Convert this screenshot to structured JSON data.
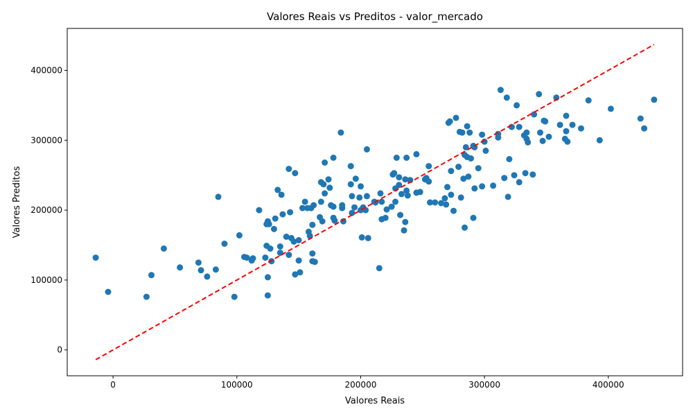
{
  "chart_data": {
    "type": "scatter",
    "title": "Valores Reais vs Preditos - valor_mercado",
    "xlabel": "Valores Reais",
    "ylabel": "Valores Preditos",
    "xlim": [
      -37000,
      460000
    ],
    "ylim": [
      -37000,
      460000
    ],
    "xticks": [
      0,
      100000,
      200000,
      300000,
      400000
    ],
    "yticks": [
      0,
      100000,
      200000,
      300000,
      400000
    ],
    "xtick_labels": [
      "0",
      "100000",
      "200000",
      "300000",
      "400000"
    ],
    "ytick_labels": [
      "0",
      "100000",
      "200000",
      "300000",
      "400000"
    ],
    "grid": false,
    "series": [
      {
        "type": "scatter",
        "color": "#1f77b4",
        "points": [
          [
            -14000,
            132000
          ],
          [
            -4000,
            83000
          ],
          [
            27000,
            76000
          ],
          [
            31000,
            107000
          ],
          [
            41000,
            145000
          ],
          [
            54000,
            118000
          ],
          [
            69000,
            125000
          ],
          [
            71000,
            114000
          ],
          [
            76000,
            105000
          ],
          [
            83000,
            115000
          ],
          [
            85000,
            219000
          ],
          [
            90000,
            152000
          ],
          [
            98000,
            76000
          ],
          [
            102000,
            164000
          ],
          [
            106000,
            133000
          ],
          [
            108000,
            132000
          ],
          [
            112000,
            128000
          ],
          [
            113000,
            131000
          ],
          [
            118000,
            200000
          ],
          [
            123000,
            132000
          ],
          [
            124000,
            149000
          ],
          [
            124000,
            180000
          ],
          [
            125000,
            184000
          ],
          [
            125000,
            104000
          ],
          [
            125000,
            78000
          ],
          [
            126000,
            180000
          ],
          [
            127000,
            145000
          ],
          [
            128000,
            127000
          ],
          [
            130000,
            173000
          ],
          [
            131000,
            188000
          ],
          [
            133000,
            229000
          ],
          [
            135000,
            148000
          ],
          [
            135000,
            139000
          ],
          [
            136000,
            222000
          ],
          [
            137000,
            194000
          ],
          [
            140000,
            162000
          ],
          [
            142000,
            136000
          ],
          [
            142000,
            259000
          ],
          [
            143000,
            197000
          ],
          [
            144000,
            160000
          ],
          [
            146000,
            155000
          ],
          [
            147000,
            108000
          ],
          [
            147000,
            253000
          ],
          [
            150000,
            157000
          ],
          [
            150000,
            128000
          ],
          [
            151000,
            111000
          ],
          [
            153000,
            203000
          ],
          [
            155000,
            212000
          ],
          [
            157000,
            203000
          ],
          [
            158000,
            169000
          ],
          [
            159000,
            163000
          ],
          [
            160000,
            203000
          ],
          [
            161000,
            138000
          ],
          [
            161000,
            127000
          ],
          [
            161000,
            179000
          ],
          [
            162000,
            207000
          ],
          [
            163000,
            126000
          ],
          [
            167000,
            190000
          ],
          [
            168000,
            240000
          ],
          [
            168000,
            212000
          ],
          [
            169000,
            184000
          ],
          [
            170000,
            237000
          ],
          [
            171000,
            224000
          ],
          [
            171000,
            268000
          ],
          [
            174000,
            244000
          ],
          [
            175000,
            232000
          ],
          [
            176000,
            207000
          ],
          [
            178000,
            189000
          ],
          [
            178000,
            205000
          ],
          [
            178000,
            275000
          ],
          [
            179000,
            185000
          ],
          [
            184000,
            311000
          ],
          [
            185000,
            203000
          ],
          [
            185000,
            207000
          ],
          [
            186000,
            184000
          ],
          [
            192000,
            263000
          ],
          [
            192000,
            237000
          ],
          [
            193000,
            220000
          ],
          [
            193000,
            196000
          ],
          [
            195000,
            204000
          ],
          [
            196000,
            245000
          ],
          [
            199000,
            218000
          ],
          [
            200000,
            234000
          ],
          [
            200000,
            200000
          ],
          [
            201000,
            161000
          ],
          [
            202000,
            204000
          ],
          [
            204000,
            200000
          ],
          [
            205000,
            220000
          ],
          [
            205000,
            287000
          ],
          [
            206000,
            160000
          ],
          [
            211000,
            212000
          ],
          [
            212000,
            211000
          ],
          [
            215000,
            117000
          ],
          [
            216000,
            224000
          ],
          [
            217000,
            212000
          ],
          [
            217000,
            187000
          ],
          [
            220000,
            189000
          ],
          [
            221000,
            201000
          ],
          [
            225000,
            205000
          ],
          [
            226000,
            251000
          ],
          [
            227000,
            253000
          ],
          [
            228000,
            231000
          ],
          [
            228000,
            212000
          ],
          [
            229000,
            275000
          ],
          [
            231000,
            236000
          ],
          [
            231000,
            247000
          ],
          [
            232000,
            193000
          ],
          [
            233000,
            223000
          ],
          [
            235000,
            171000
          ],
          [
            236000,
            183000
          ],
          [
            236000,
            244000
          ],
          [
            237000,
            228000
          ],
          [
            237000,
            275000
          ],
          [
            238000,
            221000
          ],
          [
            240000,
            243000
          ],
          [
            245000,
            225000
          ],
          [
            245000,
            280000
          ],
          [
            248000,
            226000
          ],
          [
            252000,
            244000
          ],
          [
            253000,
            246000
          ],
          [
            255000,
            263000
          ],
          [
            255000,
            241000
          ],
          [
            256000,
            211000
          ],
          [
            260000,
            211000
          ],
          [
            265000,
            210000
          ],
          [
            268000,
            217000
          ],
          [
            269000,
            208000
          ],
          [
            270000,
            233000
          ],
          [
            271000,
            325000
          ],
          [
            272000,
            327000
          ],
          [
            273000,
            256000
          ],
          [
            273000,
            222000
          ],
          [
            275000,
            199000
          ],
          [
            277000,
            332000
          ],
          [
            279000,
            262000
          ],
          [
            280000,
            312000
          ],
          [
            281000,
            218000
          ],
          [
            282000,
            311000
          ],
          [
            283000,
            245000
          ],
          [
            284000,
            175000
          ],
          [
            284000,
            279000
          ],
          [
            285000,
            290000
          ],
          [
            286000,
            320000
          ],
          [
            286000,
            276000
          ],
          [
            287000,
            248000
          ],
          [
            288000,
            311000
          ],
          [
            289000,
            274000
          ],
          [
            291000,
            292000
          ],
          [
            291000,
            189000
          ],
          [
            292000,
            290000
          ],
          [
            292000,
            231000
          ],
          [
            295000,
            260000
          ],
          [
            298000,
            234000
          ],
          [
            298000,
            308000
          ],
          [
            300000,
            298000
          ],
          [
            301000,
            285000
          ],
          [
            307000,
            235000
          ],
          [
            311000,
            309000
          ],
          [
            311000,
            304000
          ],
          [
            313000,
            372000
          ],
          [
            316000,
            246000
          ],
          [
            318000,
            361000
          ],
          [
            319000,
            219000
          ],
          [
            320000,
            273000
          ],
          [
            322000,
            319000
          ],
          [
            324000,
            250000
          ],
          [
            326000,
            350000
          ],
          [
            328000,
            240000
          ],
          [
            328000,
            319000
          ],
          [
            332000,
            307000
          ],
          [
            333000,
            253000
          ],
          [
            334000,
            302000
          ],
          [
            334000,
            311000
          ],
          [
            335000,
            297000
          ],
          [
            339000,
            251000
          ],
          [
            340000,
            337000
          ],
          [
            344000,
            366000
          ],
          [
            345000,
            311000
          ],
          [
            347000,
            299000
          ],
          [
            348000,
            328000
          ],
          [
            349000,
            327000
          ],
          [
            352000,
            305000
          ],
          [
            358000,
            361000
          ],
          [
            361000,
            322000
          ],
          [
            365000,
            302000
          ],
          [
            366000,
            313000
          ],
          [
            366000,
            335000
          ],
          [
            367000,
            298000
          ],
          [
            371000,
            322000
          ],
          [
            378000,
            317000
          ],
          [
            384000,
            357000
          ],
          [
            393000,
            300000
          ],
          [
            402000,
            345000
          ],
          [
            426000,
            331000
          ],
          [
            429000,
            317000
          ],
          [
            437000,
            358000
          ]
        ]
      },
      {
        "type": "line",
        "style": "dashed",
        "color": "#ff0000",
        "points": [
          [
            -14000,
            -14000
          ],
          [
            437000,
            437000
          ]
        ]
      }
    ]
  }
}
